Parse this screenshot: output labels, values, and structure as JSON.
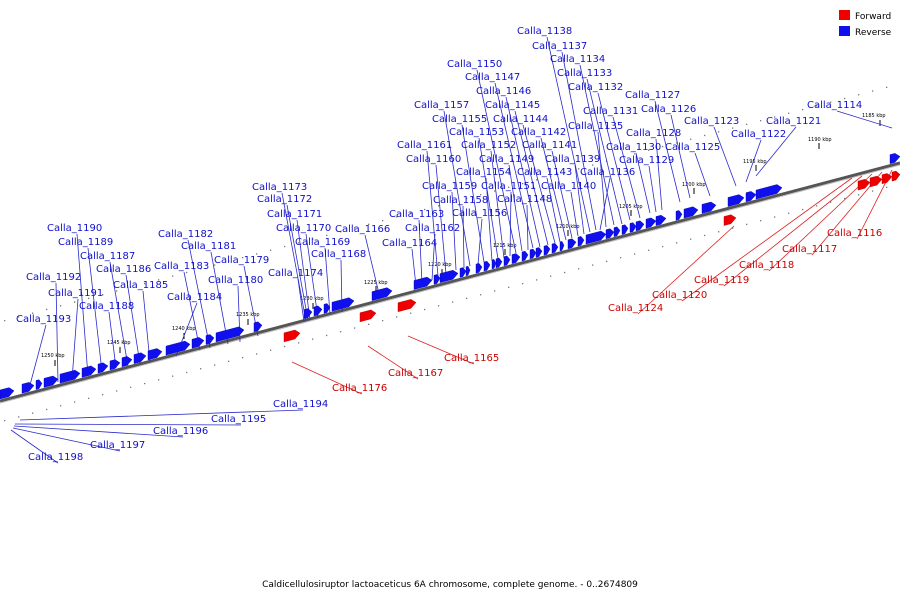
{
  "legend": {
    "forward": "Forward",
    "reverse": "Reverse"
  },
  "colors": {
    "forward": "#ee0000",
    "reverse": "#1010ee",
    "forward_label": "#cc0000",
    "reverse_label": "#1010cc"
  },
  "caption": "Caldicellulosiruptor lactoaceticus 6A chromosome, complete genome. - 0..2674809",
  "scale_labels": [
    "1185 kbp",
    "1190 kbp",
    "1195 kbp",
    "1200 kbp",
    "1205 kbp",
    "1210 kbp",
    "1215 kbp",
    "1220 kbp",
    "1225 kbp",
    "1230 kbp",
    "1235 kbp",
    "1240 kbp",
    "1245 kbp",
    "1250 kbp"
  ],
  "reverse_labels": [
    "Calla_1114",
    "Calla_1121",
    "Calla_1122",
    "Calla_1123",
    "Calla_1125",
    "Calla_1126",
    "Calla_1127",
    "Calla_1128",
    "Calla_1129",
    "Calla_1130",
    "Calla_1131",
    "Calla_1132",
    "Calla_1133",
    "Calla_1134",
    "Calla_1135",
    "Calla_1136",
    "Calla_1137",
    "Calla_1138",
    "Calla_1139",
    "Calla_1140",
    "Calla_1141",
    "Calla_1142",
    "Calla_1143",
    "Calla_1144",
    "Calla_1145",
    "Calla_1146",
    "Calla_1147",
    "Calla_1148",
    "Calla_1149",
    "Calla_1150",
    "Calla_1151",
    "Calla_1152",
    "Calla_1153",
    "Calla_1154",
    "Calla_1155",
    "Calla_1156",
    "Calla_1157",
    "Calla_1158",
    "Calla_1159",
    "Calla_1160",
    "Calla_1161",
    "Calla_1162",
    "Calla_1163",
    "Calla_1164",
    "Calla_1166",
    "Calla_1168",
    "Calla_1169",
    "Calla_1170",
    "Calla_1171",
    "Calla_1172",
    "Calla_1173",
    "Calla_1174",
    "Calla_1179",
    "Calla_1180",
    "Calla_1181",
    "Calla_1182",
    "Calla_1183",
    "Calla_1184",
    "Calla_1185",
    "Calla_1186",
    "Calla_1187",
    "Calla_1188",
    "Calla_1189",
    "Calla_1190",
    "Calla_1191",
    "Calla_1192",
    "Calla_1193",
    "Calla_1194",
    "Calla_1195",
    "Calla_1196",
    "Calla_1197",
    "Calla_1198"
  ],
  "forward_labels": [
    "Calla_1116",
    "Calla_1117",
    "Calla_1118",
    "Calla_1119",
    "Calla_1120",
    "Calla_1124",
    "Calla_1165",
    "Calla_1167",
    "Calla_1176"
  ]
}
